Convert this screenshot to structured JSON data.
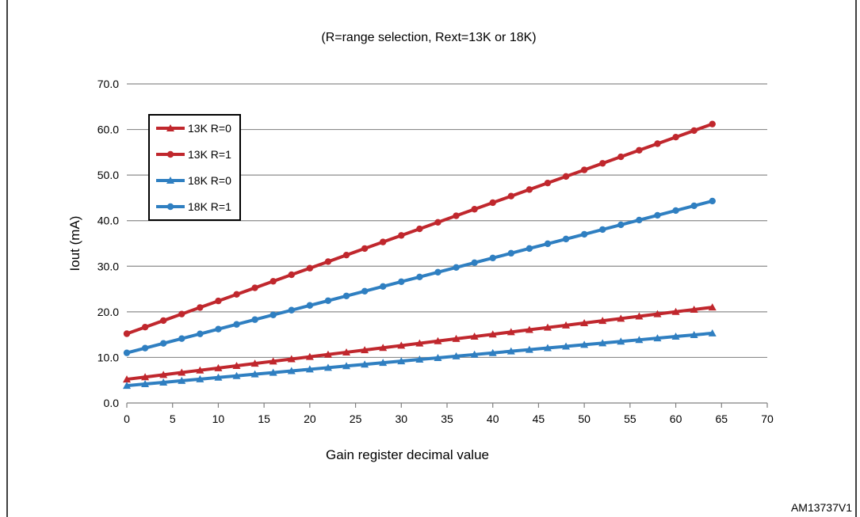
{
  "chart_data": {
    "type": "line",
    "subtitle": "(R=range selection, Rext=13K or 18K)",
    "xlabel": "Gain register decimal value",
    "ylabel": "Iout (mA)",
    "xlim": [
      0,
      70
    ],
    "ylim": [
      0,
      70
    ],
    "xticks": [
      0,
      5,
      10,
      15,
      20,
      25,
      30,
      35,
      40,
      45,
      50,
      55,
      60,
      65,
      70
    ],
    "yticks": [
      "0.0",
      "10.0",
      "20.0",
      "30.0",
      "40.0",
      "50.0",
      "60.0",
      "70.0"
    ],
    "grid": "horizontal",
    "legend_position": "top-left",
    "figure_id": "AM13737V1",
    "series": [
      {
        "name": "13K R=0",
        "color": "#c0272d",
        "marker": "triangle",
        "x_start": 0,
        "x_end": 64,
        "x_step": 2,
        "y_start": 5.2,
        "y_end": 21.0
      },
      {
        "name": "13K R=1",
        "color": "#c0272d",
        "marker": "circle",
        "x_start": 0,
        "x_end": 64,
        "x_step": 2,
        "y_start": 15.2,
        "y_end": 61.2
      },
      {
        "name": "18K R=0",
        "color": "#2f7fc1",
        "marker": "triangle",
        "x_start": 0,
        "x_end": 64,
        "x_step": 2,
        "y_start": 3.8,
        "y_end": 15.3
      },
      {
        "name": "18K R=1",
        "color": "#2f7fc1",
        "marker": "circle",
        "x_start": 0,
        "x_end": 64,
        "x_step": 2,
        "y_start": 11.0,
        "y_end": 44.3
      }
    ]
  }
}
